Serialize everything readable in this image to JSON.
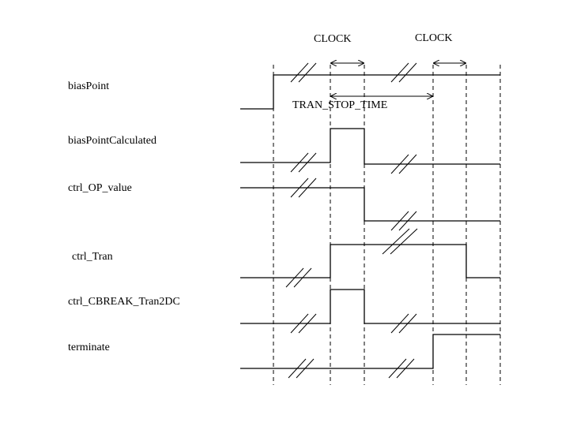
{
  "annotations": {
    "clock_left": "CLOCK",
    "clock_right": "CLOCK",
    "tran_stop_time": "TRAN_STOP_TIME"
  },
  "signals": [
    {
      "name": "biasPoint"
    },
    {
      "name": "biasPointCalculated"
    },
    {
      "name": "ctrl_OP_value"
    },
    {
      "name": "ctrl_Tran"
    },
    {
      "name": "ctrl_CBREAK_Tran2DC"
    },
    {
      "name": "terminate"
    }
  ],
  "colors": {
    "line": "#000000",
    "background": "#ffffff"
  }
}
